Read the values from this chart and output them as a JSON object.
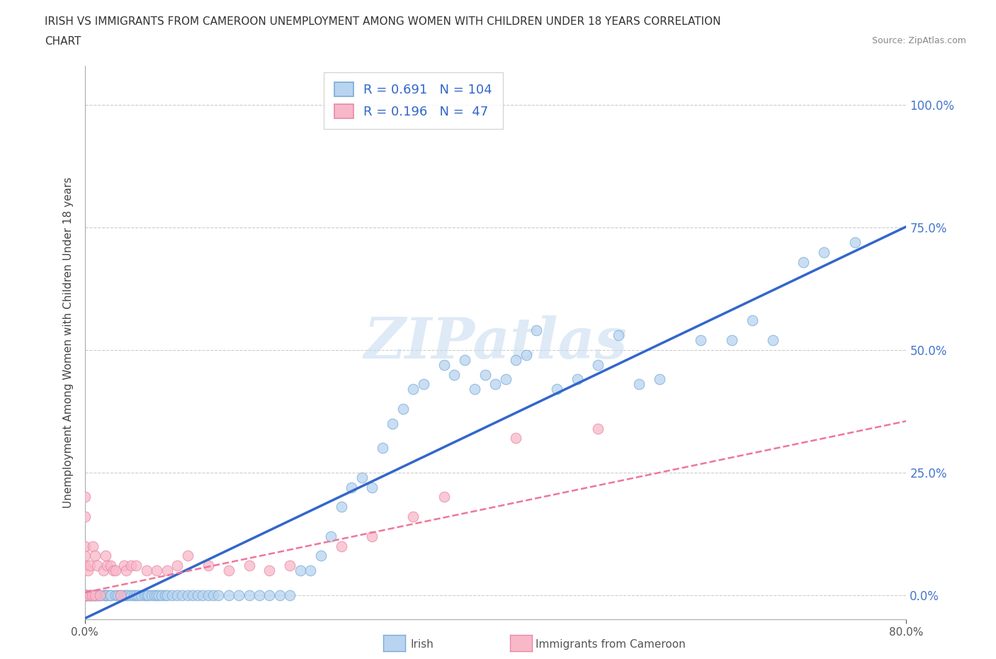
{
  "title_line1": "IRISH VS IMMIGRANTS FROM CAMEROON UNEMPLOYMENT AMONG WOMEN WITH CHILDREN UNDER 18 YEARS CORRELATION",
  "title_line2": "CHART",
  "source": "Source: ZipAtlas.com",
  "ylabel": "Unemployment Among Women with Children Under 18 years",
  "xlim": [
    0.0,
    0.8
  ],
  "ylim": [
    -0.05,
    1.08
  ],
  "yticks": [
    0.0,
    0.25,
    0.5,
    0.75,
    1.0
  ],
  "ytick_labels": [
    "0.0%",
    "25.0%",
    "50.0%",
    "75.0%",
    "100.0%"
  ],
  "xtick_labels": [
    "0.0%",
    "80.0%"
  ],
  "irish_color": "#b8d4f0",
  "cameroon_color": "#f8b8c8",
  "irish_edge_color": "#7aaad8",
  "cameroon_edge_color": "#e888a8",
  "line_irish_color": "#3366cc",
  "line_cameroon_color": "#ee7799",
  "legend_irish_R": "0.691",
  "legend_irish_N": "104",
  "legend_cameroon_R": "0.196",
  "legend_cameroon_N": " 47",
  "watermark": "ZIPatlas",
  "irish_line_x0": 0.0,
  "irish_line_y0": -0.048,
  "irish_line_x1": 0.8,
  "irish_line_y1": 0.752,
  "cam_line_x0": 0.0,
  "cam_line_y0": 0.005,
  "cam_line_x1": 0.8,
  "cam_line_y1": 0.355
}
